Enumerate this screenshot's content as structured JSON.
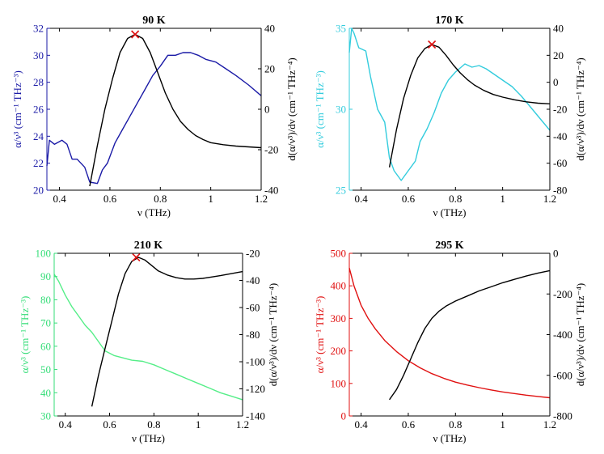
{
  "chart_data": [
    {
      "type": "line",
      "title": "90 K",
      "xlabel": "ν (THz)",
      "ylabel_left": "α/ν³ (cm⁻¹ THz⁻³)",
      "ylabel_right": "d(α/ν³)/dν (cm⁻¹ THz⁻⁴)",
      "xlim": [
        0.35,
        1.2
      ],
      "xticks": [
        0.4,
        0.6,
        0.8,
        1.0,
        1.2
      ],
      "xtick_labels": [
        "0.4",
        "0.6",
        "0.8",
        "1",
        "1.2"
      ],
      "ylim_left": [
        20,
        32
      ],
      "yticks_left": [
        20,
        22,
        24,
        26,
        28,
        30,
        32
      ],
      "ylim_right": [
        -40,
        40
      ],
      "yticks_right": [
        -40,
        -20,
        0,
        20,
        40
      ],
      "left_color": "#1a1aa6",
      "right_color": "#000000",
      "series": [
        {
          "name": "α/ν³",
          "axis": "left",
          "color": "#1a1aa6",
          "x": [
            0.35,
            0.36,
            0.38,
            0.41,
            0.43,
            0.45,
            0.47,
            0.5,
            0.52,
            0.55,
            0.57,
            0.59,
            0.62,
            0.65,
            0.68,
            0.71,
            0.74,
            0.77,
            0.8,
            0.83,
            0.86,
            0.89,
            0.92,
            0.95,
            0.98,
            1.02,
            1.06,
            1.1,
            1.15,
            1.2
          ],
          "y": [
            21.8,
            23.7,
            23.4,
            23.7,
            23.4,
            22.3,
            22.3,
            21.7,
            20.6,
            20.5,
            21.5,
            22.0,
            23.5,
            24.5,
            25.5,
            26.5,
            27.5,
            28.5,
            29.2,
            30.0,
            30.0,
            30.2,
            30.2,
            30.0,
            29.7,
            29.5,
            29.0,
            28.5,
            27.8,
            27.0
          ]
        },
        {
          "name": "d(α/ν³)/dν",
          "axis": "right",
          "color": "#000000",
          "x": [
            0.52,
            0.55,
            0.58,
            0.61,
            0.64,
            0.67,
            0.7,
            0.73,
            0.76,
            0.79,
            0.82,
            0.85,
            0.88,
            0.91,
            0.94,
            0.97,
            1.0,
            1.05,
            1.1,
            1.15,
            1.2
          ],
          "y": [
            -38,
            -18,
            0,
            15,
            28,
            35,
            37,
            35,
            28,
            18,
            8,
            0,
            -6,
            -10,
            -13,
            -15,
            -16.5,
            -17.5,
            -18.2,
            -18.6,
            -19
          ]
        },
        {
          "name": "peak",
          "axis": "right",
          "marker": "x",
          "color": "#e01010",
          "x": [
            0.7
          ],
          "y": [
            37
          ]
        }
      ]
    },
    {
      "type": "line",
      "title": "170 K",
      "xlabel": "ν (THz)",
      "ylabel_left": "α/ν³ (cm⁻¹ THz⁻³)",
      "ylabel_right": "d(α/ν³)/dν (cm⁻¹ THz⁻⁴)",
      "xlim": [
        0.35,
        1.2
      ],
      "xticks": [
        0.4,
        0.6,
        0.8,
        1.0,
        1.2
      ],
      "xtick_labels": [
        "0.4",
        "0.6",
        "0.8",
        "1",
        "1.2"
      ],
      "ylim_left": [
        25,
        35
      ],
      "yticks_left": [
        25,
        30,
        35
      ],
      "ylim_right": [
        -80,
        40
      ],
      "yticks_right": [
        -80,
        -60,
        -40,
        -20,
        0,
        20,
        40
      ],
      "left_color": "#33ccdd",
      "right_color": "#000000",
      "series": [
        {
          "name": "α/ν³",
          "axis": "left",
          "color": "#33ccdd",
          "x": [
            0.35,
            0.36,
            0.37,
            0.39,
            0.42,
            0.44,
            0.47,
            0.5,
            0.52,
            0.54,
            0.57,
            0.6,
            0.63,
            0.65,
            0.68,
            0.71,
            0.74,
            0.77,
            0.8,
            0.84,
            0.87,
            0.9,
            0.93,
            0.96,
            1.0,
            1.04,
            1.08,
            1.12,
            1.16,
            1.2
          ],
          "y": [
            33.5,
            35.0,
            34.7,
            33.8,
            33.6,
            32.0,
            30.0,
            29.2,
            27.0,
            26.2,
            25.6,
            26.2,
            26.8,
            28.0,
            28.8,
            29.8,
            31.0,
            31.8,
            32.3,
            32.8,
            32.6,
            32.7,
            32.5,
            32.2,
            31.8,
            31.4,
            30.8,
            30.1,
            29.4,
            28.7
          ]
        },
        {
          "name": "d(α/ν³)/dν",
          "axis": "right",
          "color": "#000000",
          "x": [
            0.52,
            0.55,
            0.58,
            0.61,
            0.64,
            0.67,
            0.7,
            0.73,
            0.76,
            0.79,
            0.82,
            0.85,
            0.88,
            0.92,
            0.96,
            1.0,
            1.05,
            1.1,
            1.15,
            1.2
          ],
          "y": [
            -63,
            -35,
            -12,
            5,
            18,
            25,
            28,
            26,
            20,
            13,
            7,
            2,
            -2,
            -6,
            -9,
            -11,
            -13,
            -14.5,
            -15.5,
            -16
          ]
        },
        {
          "name": "peak",
          "axis": "right",
          "marker": "x",
          "color": "#e01010",
          "x": [
            0.7
          ],
          "y": [
            28
          ]
        }
      ]
    },
    {
      "type": "line",
      "title": "210 K",
      "xlabel": "ν (THz)",
      "ylabel_left": "α/ν³ (cm⁻¹ THz⁻³)",
      "ylabel_right": "d(α/ν³)/dν (cm⁻¹ THz⁻⁴)",
      "xlim": [
        0.35,
        1.2
      ],
      "xticks": [
        0.4,
        0.6,
        0.8,
        1.0,
        1.2
      ],
      "xtick_labels": [
        "0.4",
        "0.6",
        "0.8",
        "1",
        "1.2"
      ],
      "ylim_left": [
        30,
        100
      ],
      "yticks_left": [
        30,
        40,
        50,
        60,
        70,
        80,
        90,
        100
      ],
      "ylim_right": [
        -140,
        -20
      ],
      "yticks_right": [
        -140,
        -120,
        -100,
        -80,
        -60,
        -40,
        -20
      ],
      "left_color": "#33dd77",
      "right_color": "#000000",
      "series": [
        {
          "name": "α/ν³",
          "axis": "left",
          "color": "#55ee88",
          "x": [
            0.35,
            0.37,
            0.4,
            0.43,
            0.46,
            0.49,
            0.52,
            0.55,
            0.58,
            0.62,
            0.66,
            0.7,
            0.75,
            0.8,
            0.85,
            0.9,
            0.95,
            1.0,
            1.05,
            1.1,
            1.15,
            1.2
          ],
          "y": [
            91,
            88,
            82,
            77,
            73,
            69,
            66,
            62,
            58,
            56,
            55,
            54,
            53.5,
            52,
            50,
            48,
            46,
            44,
            42,
            40,
            38.5,
            37
          ]
        },
        {
          "name": "d(α/ν³)/dν",
          "axis": "right",
          "color": "#000000",
          "x": [
            0.52,
            0.55,
            0.58,
            0.61,
            0.64,
            0.67,
            0.7,
            0.73,
            0.76,
            0.79,
            0.82,
            0.86,
            0.9,
            0.94,
            0.98,
            1.02,
            1.06,
            1.1,
            1.15,
            1.2
          ],
          "y": [
            -133,
            -110,
            -90,
            -70,
            -50,
            -35,
            -26,
            -23,
            -25,
            -29,
            -33,
            -36,
            -38,
            -39,
            -39,
            -38.5,
            -37.5,
            -36.5,
            -35,
            -33.5
          ]
        },
        {
          "name": "peak",
          "axis": "right",
          "marker": "x",
          "color": "#e01010",
          "x": [
            0.72
          ],
          "y": [
            -23
          ]
        }
      ]
    },
    {
      "type": "line",
      "title": "295 K",
      "xlabel": "ν (THz)",
      "ylabel_left": "α/ν³ (cm⁻¹ THz⁻³)",
      "ylabel_right": "d(α/ν³)/dν (cm⁻¹ THz⁻⁴)",
      "xlim": [
        0.35,
        1.2
      ],
      "xticks": [
        0.4,
        0.6,
        0.8,
        1.0,
        1.2
      ],
      "xtick_labels": [
        "0.4",
        "0.6",
        "0.8",
        "1",
        "1.2"
      ],
      "ylim_left": [
        0,
        500
      ],
      "yticks_left": [
        0,
        100,
        200,
        300,
        400,
        500
      ],
      "ylim_right": [
        -800,
        0
      ],
      "yticks_right": [
        -800,
        -600,
        -400,
        -200,
        0
      ],
      "left_color": "#e01010",
      "right_color": "#000000",
      "series": [
        {
          "name": "α/ν³",
          "axis": "left",
          "color": "#e01010",
          "x": [
            0.35,
            0.37,
            0.4,
            0.43,
            0.46,
            0.5,
            0.55,
            0.6,
            0.65,
            0.7,
            0.75,
            0.8,
            0.85,
            0.9,
            0.95,
            1.0,
            1.05,
            1.1,
            1.15,
            1.2
          ],
          "y": [
            455,
            400,
            340,
            300,
            268,
            232,
            198,
            170,
            148,
            130,
            116,
            104,
            95,
            87,
            80,
            74,
            69,
            64,
            60,
            56
          ]
        },
        {
          "name": "d(α/ν³)/dν",
          "axis": "right",
          "color": "#000000",
          "x": [
            0.52,
            0.55,
            0.58,
            0.61,
            0.64,
            0.67,
            0.7,
            0.73,
            0.76,
            0.8,
            0.85,
            0.9,
            0.95,
            1.0,
            1.05,
            1.1,
            1.15,
            1.2
          ],
          "y": [
            -720,
            -670,
            -600,
            -520,
            -440,
            -370,
            -320,
            -285,
            -260,
            -235,
            -210,
            -185,
            -165,
            -145,
            -128,
            -112,
            -97,
            -85
          ]
        }
      ]
    }
  ]
}
